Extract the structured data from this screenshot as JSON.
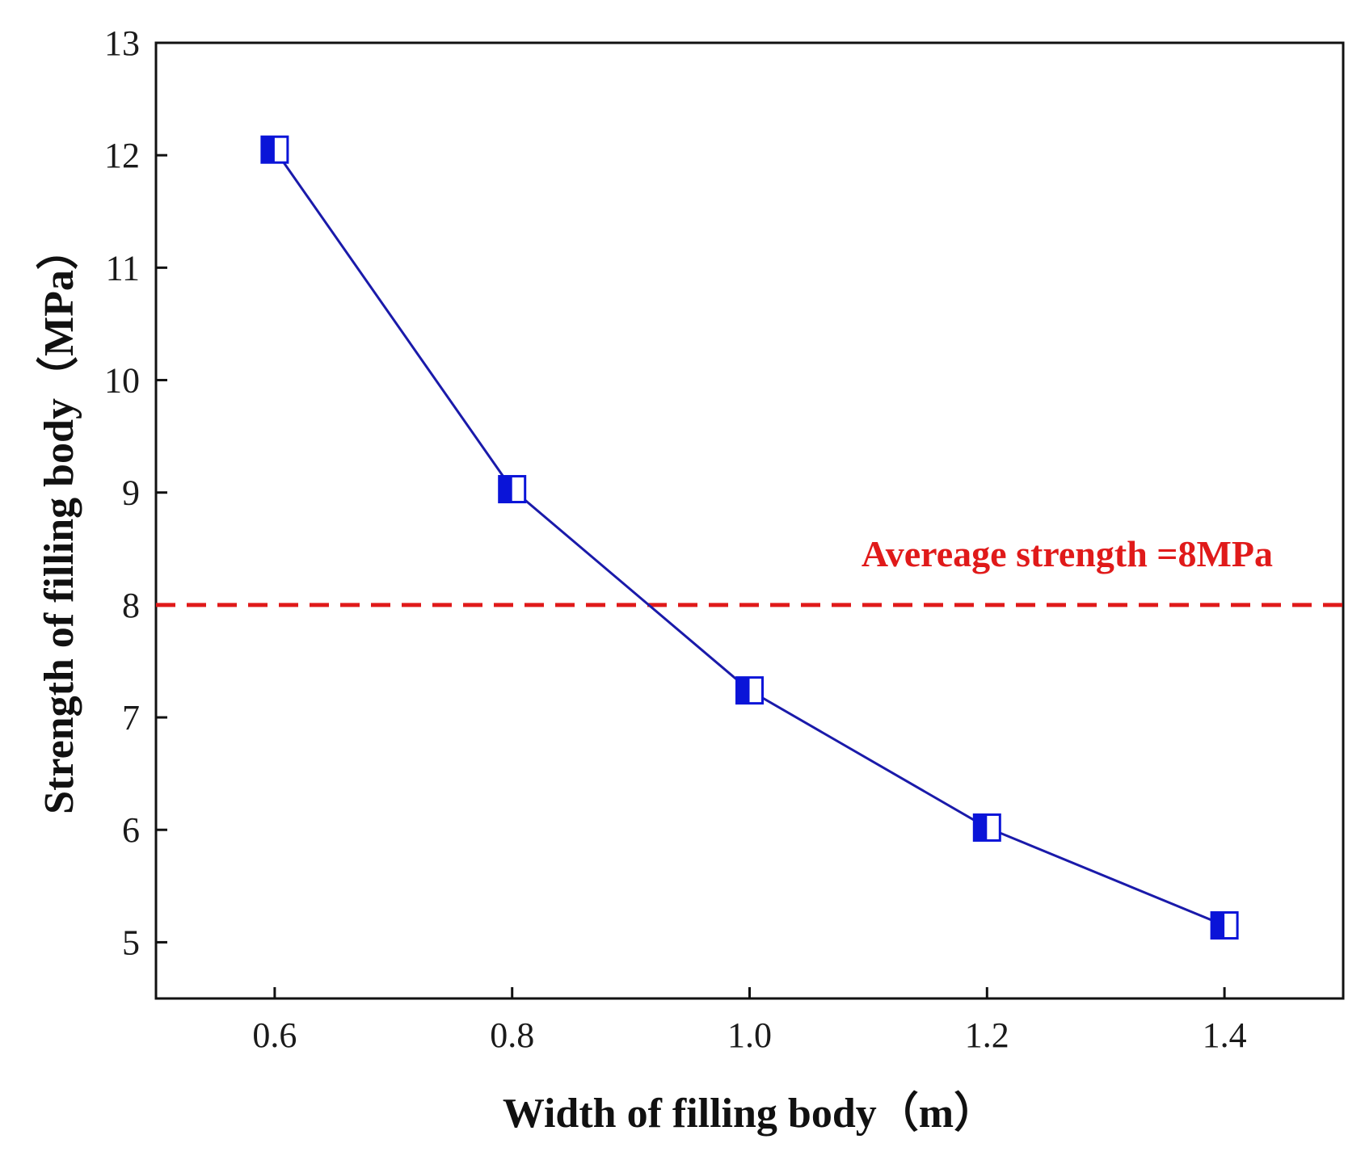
{
  "chart_data": {
    "type": "line",
    "title": "",
    "xlabel": "Width of filling body（m）",
    "ylabel": "Strength of filling body（MPa）",
    "xlim": [
      0.5,
      1.5
    ],
    "ylim": [
      4.5,
      13
    ],
    "xticks": [
      0.6,
      0.8,
      1.0,
      1.2,
      1.4
    ],
    "xtick_labels": [
      "0.6",
      "0.8",
      "1.0",
      "1.2",
      "1.4"
    ],
    "yticks": [
      5,
      6,
      7,
      8,
      9,
      10,
      11,
      12,
      13
    ],
    "ytick_labels": [
      "5",
      "6",
      "7",
      "8",
      "9",
      "10",
      "11",
      "12",
      "13"
    ],
    "grid": false,
    "series": [
      {
        "name": "Strength",
        "x": [
          0.6,
          0.8,
          1.0,
          1.2,
          1.4
        ],
        "values": [
          12.05,
          9.03,
          7.24,
          6.02,
          5.15
        ],
        "color": "#1a1aaa",
        "marker_color": "#0a14d8",
        "marker": "half-filled-square"
      }
    ],
    "reference_line": {
      "value": 8,
      "label": "Avereage strength =8MPa",
      "color": "#e01a1a",
      "style": "dashed"
    }
  }
}
